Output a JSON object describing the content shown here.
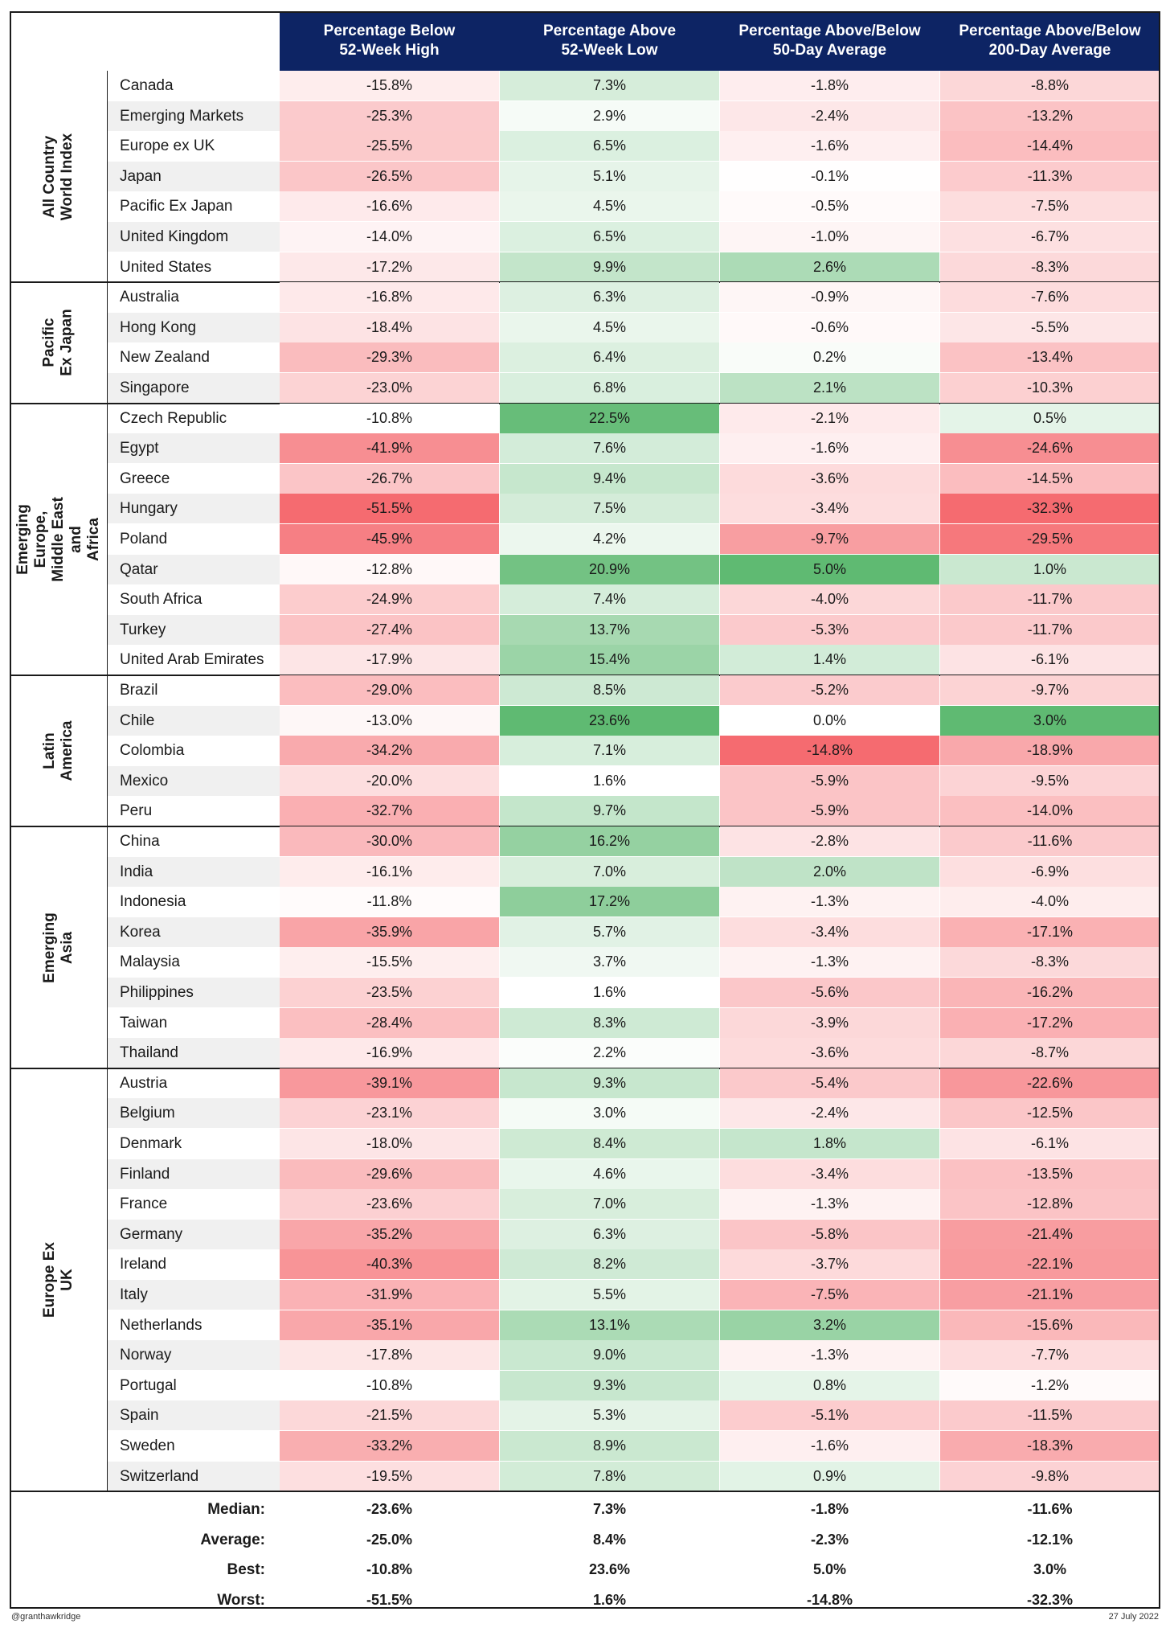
{
  "chart_data": {
    "type": "table",
    "columns": [
      "Percentage Below\n52-Week High",
      "Percentage Above\n52-Week Low",
      "Percentage Above/Below\n50-Day Average",
      "Percentage Above/Below\n200-Day Average"
    ],
    "groups": [
      {
        "name": "All Country World Index",
        "rows": [
          {
            "country": "Canada",
            "values": [
              "-15.8%",
              "7.3%",
              "-1.8%",
              "-8.8%"
            ]
          },
          {
            "country": "Emerging Markets",
            "values": [
              "-25.3%",
              "2.9%",
              "-2.4%",
              "-13.2%"
            ]
          },
          {
            "country": "Europe ex UK",
            "values": [
              "-25.5%",
              "6.5%",
              "-1.6%",
              "-14.4%"
            ]
          },
          {
            "country": "Japan",
            "values": [
              "-26.5%",
              "5.1%",
              "-0.1%",
              "-11.3%"
            ]
          },
          {
            "country": "Pacific Ex Japan",
            "values": [
              "-16.6%",
              "4.5%",
              "-0.5%",
              "-7.5%"
            ]
          },
          {
            "country": "United Kingdom",
            "values": [
              "-14.0%",
              "6.5%",
              "-1.0%",
              "-6.7%"
            ]
          },
          {
            "country": "United States",
            "values": [
              "-17.2%",
              "9.9%",
              "2.6%",
              "-8.3%"
            ]
          }
        ]
      },
      {
        "name": "Pacific\nEx Japan",
        "rows": [
          {
            "country": "Australia",
            "values": [
              "-16.8%",
              "6.3%",
              "-0.9%",
              "-7.6%"
            ]
          },
          {
            "country": "Hong Kong",
            "values": [
              "-18.4%",
              "4.5%",
              "-0.6%",
              "-5.5%"
            ]
          },
          {
            "country": "New Zealand",
            "values": [
              "-29.3%",
              "6.4%",
              "0.2%",
              "-13.4%"
            ]
          },
          {
            "country": "Singapore",
            "values": [
              "-23.0%",
              "6.8%",
              "2.1%",
              "-10.3%"
            ]
          }
        ]
      },
      {
        "name": "Emerging Europe, Middle East and\nAfrica",
        "rows": [
          {
            "country": "Czech Republic",
            "values": [
              "-10.8%",
              "22.5%",
              "-2.1%",
              "0.5%"
            ]
          },
          {
            "country": "Egypt",
            "values": [
              "-41.9%",
              "7.6%",
              "-1.6%",
              "-24.6%"
            ]
          },
          {
            "country": "Greece",
            "values": [
              "-26.7%",
              "9.4%",
              "-3.6%",
              "-14.5%"
            ]
          },
          {
            "country": "Hungary",
            "values": [
              "-51.5%",
              "7.5%",
              "-3.4%",
              "-32.3%"
            ]
          },
          {
            "country": "Poland",
            "values": [
              "-45.9%",
              "4.2%",
              "-9.7%",
              "-29.5%"
            ]
          },
          {
            "country": "Qatar",
            "values": [
              "-12.8%",
              "20.9%",
              "5.0%",
              "1.0%"
            ]
          },
          {
            "country": "South Africa",
            "values": [
              "-24.9%",
              "7.4%",
              "-4.0%",
              "-11.7%"
            ]
          },
          {
            "country": "Turkey",
            "values": [
              "-27.4%",
              "13.7%",
              "-5.3%",
              "-11.7%"
            ]
          },
          {
            "country": "United Arab Emirates",
            "values": [
              "-17.9%",
              "15.4%",
              "1.4%",
              "-6.1%"
            ]
          }
        ]
      },
      {
        "name": "Latin America",
        "rows": [
          {
            "country": "Brazil",
            "values": [
              "-29.0%",
              "8.5%",
              "-5.2%",
              "-9.7%"
            ]
          },
          {
            "country": "Chile",
            "values": [
              "-13.0%",
              "23.6%",
              "0.0%",
              "3.0%"
            ]
          },
          {
            "country": "Colombia",
            "values": [
              "-34.2%",
              "7.1%",
              "-14.8%",
              "-18.9%"
            ]
          },
          {
            "country": "Mexico",
            "values": [
              "-20.0%",
              "1.6%",
              "-5.9%",
              "-9.5%"
            ]
          },
          {
            "country": "Peru",
            "values": [
              "-32.7%",
              "9.7%",
              "-5.9%",
              "-14.0%"
            ]
          }
        ]
      },
      {
        "name": "Emerging Asia",
        "rows": [
          {
            "country": "China",
            "values": [
              "-30.0%",
              "16.2%",
              "-2.8%",
              "-11.6%"
            ]
          },
          {
            "country": "India",
            "values": [
              "-16.1%",
              "7.0%",
              "2.0%",
              "-6.9%"
            ]
          },
          {
            "country": "Indonesia",
            "values": [
              "-11.8%",
              "17.2%",
              "-1.3%",
              "-4.0%"
            ]
          },
          {
            "country": "Korea",
            "values": [
              "-35.9%",
              "5.7%",
              "-3.4%",
              "-17.1%"
            ]
          },
          {
            "country": "Malaysia",
            "values": [
              "-15.5%",
              "3.7%",
              "-1.3%",
              "-8.3%"
            ]
          },
          {
            "country": "Philippines",
            "values": [
              "-23.5%",
              "1.6%",
              "-5.6%",
              "-16.2%"
            ]
          },
          {
            "country": "Taiwan",
            "values": [
              "-28.4%",
              "8.3%",
              "-3.9%",
              "-17.2%"
            ]
          },
          {
            "country": "Thailand",
            "values": [
              "-16.9%",
              "2.2%",
              "-3.6%",
              "-8.7%"
            ]
          }
        ]
      },
      {
        "name": "Europe Ex UK",
        "rows": [
          {
            "country": "Austria",
            "values": [
              "-39.1%",
              "9.3%",
              "-5.4%",
              "-22.6%"
            ]
          },
          {
            "country": "Belgium",
            "values": [
              "-23.1%",
              "3.0%",
              "-2.4%",
              "-12.5%"
            ]
          },
          {
            "country": "Denmark",
            "values": [
              "-18.0%",
              "8.4%",
              "1.8%",
              "-6.1%"
            ]
          },
          {
            "country": "Finland",
            "values": [
              "-29.6%",
              "4.6%",
              "-3.4%",
              "-13.5%"
            ]
          },
          {
            "country": "France",
            "values": [
              "-23.6%",
              "7.0%",
              "-1.3%",
              "-12.8%"
            ]
          },
          {
            "country": "Germany",
            "values": [
              "-35.2%",
              "6.3%",
              "-5.8%",
              "-21.4%"
            ]
          },
          {
            "country": "Ireland",
            "values": [
              "-40.3%",
              "8.2%",
              "-3.7%",
              "-22.1%"
            ]
          },
          {
            "country": "Italy",
            "values": [
              "-31.9%",
              "5.5%",
              "-7.5%",
              "-21.1%"
            ]
          },
          {
            "country": "Netherlands",
            "values": [
              "-35.1%",
              "13.1%",
              "3.2%",
              "-15.6%"
            ]
          },
          {
            "country": "Norway",
            "values": [
              "-17.8%",
              "9.0%",
              "-1.3%",
              "-7.7%"
            ]
          },
          {
            "country": "Portugal",
            "values": [
              "-10.8%",
              "9.3%",
              "0.8%",
              "-1.2%"
            ]
          },
          {
            "country": "Spain",
            "values": [
              "-21.5%",
              "5.3%",
              "-5.1%",
              "-11.5%"
            ]
          },
          {
            "country": "Sweden",
            "values": [
              "-33.2%",
              "8.9%",
              "-1.6%",
              "-18.3%"
            ]
          },
          {
            "country": "Switzerland",
            "values": [
              "-19.5%",
              "7.8%",
              "0.9%",
              "-9.8%"
            ]
          }
        ]
      }
    ],
    "summary": [
      {
        "label": "Median:",
        "values": [
          "-23.6%",
          "7.3%",
          "-1.8%",
          "-11.6%"
        ]
      },
      {
        "label": "Average:",
        "values": [
          "-25.0%",
          "8.4%",
          "-2.3%",
          "-12.1%"
        ]
      },
      {
        "label": "Best:",
        "values": [
          "-10.8%",
          "23.6%",
          "5.0%",
          "3.0%"
        ]
      },
      {
        "label": "Worst:",
        "values": [
          "-51.5%",
          "1.6%",
          "-14.8%",
          "-32.3%"
        ]
      }
    ],
    "colors": {
      "header_bg": "#0d2464",
      "negative": "#f56b70",
      "positive": "#5fba72",
      "stripe": "#f0f0f0"
    }
  },
  "footer": {
    "handle": "@granthawkridge",
    "date": "27 July 2022"
  }
}
